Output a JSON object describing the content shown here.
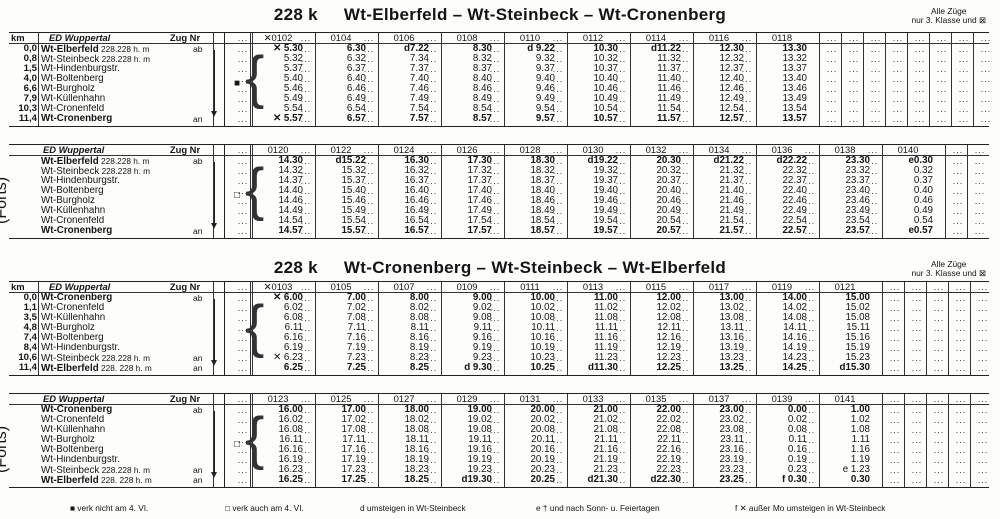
{
  "section1": {
    "tnum": "228 k",
    "title": "Wt-Elberfeld – Wt-Steinbeck – Wt-Cronenberg",
    "note": [
      "Alle Züge",
      "nur 3. Klasse und ⊠"
    ],
    "header": {
      "km": "km",
      "from": "ED Wuppertal",
      "zug": "Zug Nr"
    },
    "stations": [
      {
        "km": "0,0",
        "name": "Wt-Elberfeld",
        "ref": "228.228 h. m",
        "ab": "ab",
        "bold": true
      },
      {
        "km": "0,8",
        "name": "Wt-Steinbeck",
        "ref": "228.228 h. m",
        "ab": "",
        "bold": false
      },
      {
        "km": "1,5",
        "name": "Wt-Hindenburgstr.",
        "ref": "",
        "ab": "",
        "bold": false
      },
      {
        "km": "4,0",
        "name": "Wt-Boltenberg",
        "ref": "",
        "ab": "",
        "bold": false
      },
      {
        "km": "6,6",
        "name": "Wt-Burgholz",
        "ref": "",
        "ab": "",
        "bold": false
      },
      {
        "km": "7,9",
        "name": "Wt-Küllenhahn",
        "ref": "",
        "ab": "",
        "bold": false
      },
      {
        "km": "10,3",
        "name": "Wt-Cronenfeld",
        "ref": "",
        "ab": "",
        "bold": false
      },
      {
        "km": "11,4",
        "name": "Wt-Cronenberg",
        "ref": "",
        "ab": "an",
        "bold": true
      }
    ],
    "part1": {
      "trains": [
        "✕0102",
        "0104",
        "0106",
        "0108",
        "0110",
        "0112",
        "0114",
        "0116",
        "0118"
      ],
      "times": [
        [
          "✕ 5.30",
          "6.30",
          "d7.22",
          "8.30",
          "d 9.22",
          "10.30",
          "d11.22",
          "12.30",
          "13.30"
        ],
        [
          "5.32",
          "6.32",
          "7.34",
          "8.32",
          "9.32",
          "10.32",
          "11.32",
          "12.32",
          "13.32"
        ],
        [
          "5.37",
          "6.37",
          "7.37",
          "8.37",
          "9.37",
          "10.37",
          "11.37",
          "12.37",
          "13.37"
        ],
        [
          "5.40",
          "6.40",
          "7.40",
          "8.40",
          "9.40",
          "10.40",
          "11.40",
          "12.40",
          "13.40"
        ],
        [
          "5.46",
          "6.46",
          "7.46",
          "8.46",
          "9.46",
          "10.46",
          "11.46",
          "12.46",
          "13.46"
        ],
        [
          "5.49",
          "6.49",
          "7.49",
          "8.49",
          "9.49",
          "10.49",
          "11.49",
          "12.49",
          "13.49"
        ],
        [
          "5.54",
          "6.54",
          "7.54",
          "8.54",
          "9.54",
          "10.54",
          "11.54",
          "12.54",
          "13.54"
        ],
        [
          "✕ 5.57",
          "6.57",
          "7.57",
          "8.57",
          "9.57",
          "10.57",
          "11.57",
          "12.57",
          "13.57"
        ]
      ]
    },
    "part2": {
      "forts": "(Forts)",
      "trains": [
        "0120",
        "0122",
        "0124",
        "0126",
        "0128",
        "0130",
        "0132",
        "0134",
        "0136",
        "0138",
        "0140"
      ],
      "times": [
        [
          "14.30",
          "d15.22",
          "16.30",
          "17.30",
          "18.30",
          "d19.22",
          "20.30",
          "d21.22",
          "d22.22",
          "23.30",
          "e0.30"
        ],
        [
          "14.32",
          "15.32",
          "16.32",
          "17.32",
          "18.32",
          "19.32",
          "20.32",
          "21.32",
          "22.32",
          "23.32",
          "0.32"
        ],
        [
          "14.37",
          "15.37",
          "16.37",
          "17.37",
          "18.37",
          "19.37",
          "20.37",
          "21.37",
          "22.37",
          "23.37",
          "0.37"
        ],
        [
          "14.40",
          "15.40",
          "16.40",
          "17.40",
          "18.40",
          "19.40",
          "20.40",
          "21.40",
          "22.40",
          "23.40",
          "0.40"
        ],
        [
          "14.46",
          "15.46",
          "16.46",
          "17.46",
          "18.46",
          "19.46",
          "20.46",
          "21.46",
          "22.46",
          "23.46",
          "0.46"
        ],
        [
          "14.49",
          "15.49",
          "16.49",
          "17.49",
          "18.49",
          "19.49",
          "20.49",
          "21.49",
          "22.49",
          "23.49",
          "0.49"
        ],
        [
          "14.54",
          "15.54",
          "16.54",
          "17.54",
          "18.54",
          "19.54",
          "20.54",
          "21.54",
          "22.54",
          "23.54",
          "0.54"
        ],
        [
          "14.57",
          "15.57",
          "16.57",
          "17.57",
          "18.57",
          "19.57",
          "20.57",
          "21.57",
          "22.57",
          "23.57",
          "e0.57"
        ]
      ]
    }
  },
  "section2": {
    "tnum": "228 k",
    "title": "Wt-Cronenberg – Wt-Steinbeck – Wt-Elberfeld",
    "note": [
      "Alle Züge",
      "nur 3. Klasse und ⊠"
    ],
    "header": {
      "km": "km",
      "from": "ED Wuppertal",
      "zug": "Zug Nr"
    },
    "stations": [
      {
        "km": "0,0",
        "name": "Wt-Cronenberg",
        "ref": "",
        "ab": "ab",
        "bold": true
      },
      {
        "km": "1,1",
        "name": "Wt-Cronenfeld",
        "ref": "",
        "ab": "",
        "bold": false
      },
      {
        "km": "3,5",
        "name": "Wt-Küllenhahn",
        "ref": "",
        "ab": "",
        "bold": false
      },
      {
        "km": "4,8",
        "name": "Wt-Burgholz",
        "ref": "",
        "ab": "",
        "bold": false
      },
      {
        "km": "7,4",
        "name": "Wt-Boltenberg",
        "ref": "",
        "ab": "",
        "bold": false
      },
      {
        "km": "8,4",
        "name": "Wt-Hindenburgstr.",
        "ref": "",
        "ab": "",
        "bold": false
      },
      {
        "km": "10,6",
        "name": "Wt-Steinbeck",
        "ref": "228.228 h. m",
        "ab": "an",
        "bold": false
      },
      {
        "km": "11,4",
        "name": "Wt-Elberfeld",
        "ref": "228. 228 h. m",
        "ab": "an",
        "bold": true
      }
    ],
    "part1": {
      "trains": [
        "✕0103",
        "0105",
        "0107",
        "0109",
        "0111",
        "0113",
        "0115",
        "0117",
        "0119",
        "0121"
      ],
      "times": [
        [
          "✕ 6.00",
          "7.00",
          "8.00",
          "9.00",
          "10.00",
          "11.00",
          "12.00",
          "13.00",
          "14.00",
          "15.00"
        ],
        [
          "6.02",
          "7.02",
          "8.02",
          "9.02",
          "10.02",
          "11.02",
          "12.02",
          "13.02",
          "14.02",
          "15.02"
        ],
        [
          "6.08",
          "7.08",
          "8.08",
          "9.08",
          "10.08",
          "11.08",
          "12.08",
          "13.08",
          "14.08",
          "15.08"
        ],
        [
          "6.11",
          "7.11",
          "8.11",
          "9.11",
          "10.11",
          "11.11",
          "12.11",
          "13.11",
          "14.11",
          "15.11"
        ],
        [
          "6.16",
          "7.16",
          "8.16",
          "9.16",
          "10.16",
          "11.16",
          "12.16",
          "13.16",
          "14.16",
          "15.16"
        ],
        [
          "6.19",
          "7.19",
          "8.19",
          "9.19",
          "10.19",
          "11.19",
          "12.19",
          "13.19",
          "14.19",
          "15.19"
        ],
        [
          "✕ 6.23",
          "7.23",
          "8.23",
          "9.23",
          "10.23",
          "11.23",
          "12.23",
          "13.23",
          "14.23",
          "15.23"
        ],
        [
          "6.25",
          "7.25",
          "8.25",
          "d 9.30",
          "10.25",
          "d11.30",
          "12.25",
          "13.25",
          "14.25",
          "d15.30"
        ]
      ]
    },
    "part2": {
      "forts": "(Forts)",
      "trains": [
        "0123",
        "0125",
        "0127",
        "0129",
        "0131",
        "0133",
        "0135",
        "0137",
        "0139",
        "0141"
      ],
      "times": [
        [
          "16.00",
          "17.00",
          "18.00",
          "19.00",
          "20.00",
          "21.00",
          "22.00",
          "23.00",
          "0.00",
          "1.00"
        ],
        [
          "16.02",
          "17.02",
          "18.02",
          "19.02",
          "20.02",
          "21.02",
          "22.02",
          "23.02",
          "0.02",
          "1.02"
        ],
        [
          "16.08",
          "17.08",
          "18.08",
          "19.08",
          "20.08",
          "21.08",
          "22.08",
          "23.08",
          "0.08",
          "1.08"
        ],
        [
          "16.11",
          "17.11",
          "18.11",
          "19.11",
          "20.11",
          "21.11",
          "22.11",
          "23.11",
          "0.11",
          "1.11"
        ],
        [
          "16.16",
          "17.16",
          "18.16",
          "19.16",
          "20.16",
          "21.16",
          "22.16",
          "23.16",
          "0.16",
          "1.16"
        ],
        [
          "16.19",
          "17.19",
          "18.19",
          "19.19",
          "20.19",
          "21.19",
          "22.19",
          "23.19",
          "0.19",
          "1.19"
        ],
        [
          "16.23",
          "17.23",
          "18.23",
          "19.23",
          "20.23",
          "21.23",
          "22.23",
          "23.23",
          "0.23",
          "e 1.23"
        ],
        [
          "16.25",
          "17.25",
          "18.25",
          "d19.30",
          "20.25",
          "d21.30",
          "d22.30",
          "23.25",
          "f 0.30",
          "0.30"
        ]
      ]
    }
  },
  "legend": [
    {
      "sym": "■",
      "text": "verk nicht am 4. VI."
    },
    {
      "sym": "□",
      "text": "verk auch am 4. VI."
    },
    {
      "sym": "d",
      "text": "umsteigen in Wt-Steinbeck"
    },
    {
      "sym": "e †",
      "text": "und nach Sonn- u. Feiertagen"
    },
    {
      "sym": "f ✕",
      "text": "außer Mo umsteigen in Wt-Steinbeck"
    }
  ]
}
